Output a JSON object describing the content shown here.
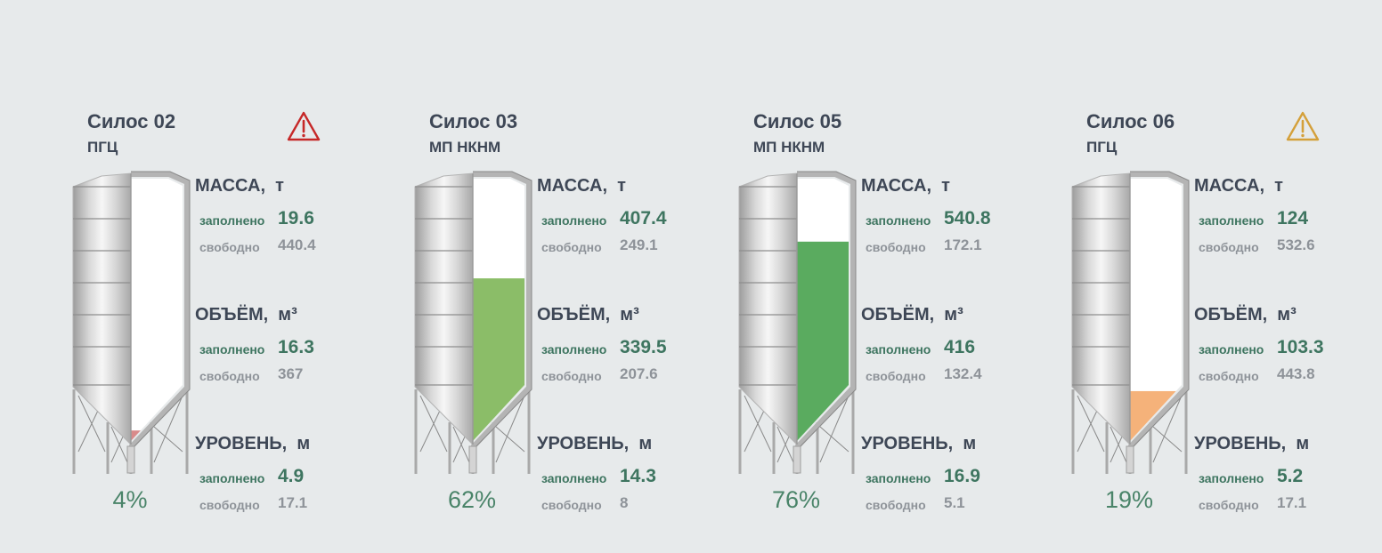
{
  "units": {
    "mass_label": "МАССА,",
    "mass_unit": "т",
    "volume_label": "ОБЪЁМ,",
    "volume_unit": "м³",
    "level_label": "УРОВЕНЬ,",
    "level_unit": "м",
    "filled_label": "заполнено",
    "free_label": "свободно"
  },
  "silos": [
    {
      "title": "Силос 02",
      "material": "ПГЦ",
      "warning_icon": "warning-triangle-icon",
      "warning_color": "#c62828",
      "fill_fraction": 0.04,
      "fill_color": "#d98a8a",
      "percent_text": "4%",
      "mass": {
        "filled": "19.6",
        "free": "440.4"
      },
      "volume": {
        "filled": "16.3",
        "free": "367"
      },
      "level": {
        "filled": "4.9",
        "free": "17.1"
      }
    },
    {
      "title": "Силос 03",
      "material": "МП НКНМ",
      "warning_icon": "",
      "warning_color": "",
      "fill_fraction": 0.62,
      "fill_color": "#8bbd68",
      "percent_text": "62%",
      "mass": {
        "filled": "407.4",
        "free": "249.1"
      },
      "volume": {
        "filled": "339.5",
        "free": "207.6"
      },
      "level": {
        "filled": "14.3",
        "free": "8"
      }
    },
    {
      "title": "Силос 05",
      "material": "МП НКНМ",
      "warning_icon": "",
      "warning_color": "",
      "fill_fraction": 0.76,
      "fill_color": "#5aab5f",
      "percent_text": "76%",
      "mass": {
        "filled": "540.8",
        "free": "172.1"
      },
      "volume": {
        "filled": "416",
        "free": "132.4"
      },
      "level": {
        "filled": "16.9",
        "free": "5.1"
      }
    },
    {
      "title": "Силос 06",
      "material": "ПГЦ",
      "warning_icon": "warning-triangle-icon",
      "warning_color": "#d4a03a",
      "fill_fraction": 0.19,
      "fill_color": "#f5b27a",
      "percent_text": "19%",
      "mass": {
        "filled": "124",
        "free": "532.6"
      },
      "volume": {
        "filled": "103.3",
        "free": "443.8"
      },
      "level": {
        "filled": "5.2",
        "free": "17.1"
      }
    }
  ]
}
